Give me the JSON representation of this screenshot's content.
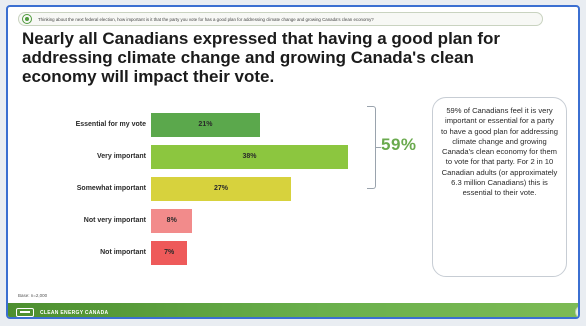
{
  "question": {
    "text": "Thinking about the next federal election, how important is it that the party you vote for has a good plan for addressing climate change and growing Canada's clean economy?"
  },
  "title": "Nearly all Canadians expressed that having a good plan for addressing climate change and growing Canada's clean economy will impact their vote.",
  "summary": {
    "label": "59%"
  },
  "note": {
    "text": "59% of Canadians feel it is very important or essential for a party to have a good plan for addressing climate change and growing Canada's clean economy for them to vote for that party. For 2 in 10 Canadian adults (or approximately 6.3 million Canadians) this is essential to their vote."
  },
  "footnote": "Base: n=2,000",
  "footer": {
    "brand": "CLEAN ENERGY CANADA"
  },
  "colors": {
    "essential": "#5ba84c",
    "very_important": "#8cc63f",
    "somewhat_important": "#d7d23d",
    "not_very_important": "#f28b8b",
    "not_important": "#ee5a5a",
    "accent": "#6aaa4e"
  },
  "chart_data": {
    "type": "bar",
    "orientation": "horizontal",
    "categories": [
      "Essential for my vote",
      "Very important",
      "Somewhat important",
      "Not very important",
      "Not important"
    ],
    "values": [
      21,
      38,
      27,
      8,
      7
    ],
    "value_labels": [
      "21%",
      "38%",
      "27%",
      "8%",
      "7%"
    ],
    "xlim": [
      0,
      38
    ],
    "grid": false,
    "legend": "none"
  }
}
